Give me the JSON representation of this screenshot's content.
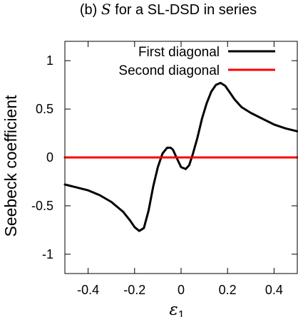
{
  "chart_data": {
    "type": "line",
    "title": "(b) S for a SL-DSD in series",
    "title_parts": {
      "prefix": "(b) ",
      "symbol": "S",
      "suffix": " for a SL-DSD in series"
    },
    "xlabel": "ε",
    "xlabel_sub": "1",
    "ylabel": "Seebeck coefficient",
    "xlim": [
      -0.5,
      0.5
    ],
    "ylim": [
      -1.2,
      1.2
    ],
    "xticks": [
      -0.4,
      -0.2,
      0,
      0.2,
      0.4
    ],
    "xtick_labels": [
      "-0.4",
      "-0.2",
      "0",
      "0.2",
      "0.4"
    ],
    "yticks": [
      -1,
      -0.5,
      0,
      0.5,
      1
    ],
    "ytick_labels": [
      "-1",
      "-0.5",
      "0",
      "0.5",
      "1"
    ],
    "grid": false,
    "legend_position": "top-right",
    "series": [
      {
        "name": "First diagonal",
        "color": "#000000",
        "x": [
          -0.5,
          -0.45,
          -0.4,
          -0.35,
          -0.3,
          -0.25,
          -0.22,
          -0.2,
          -0.18,
          -0.16,
          -0.14,
          -0.12,
          -0.1,
          -0.08,
          -0.06,
          -0.045,
          -0.035,
          -0.02,
          0.0,
          0.02,
          0.035,
          0.05,
          0.07,
          0.09,
          0.11,
          0.13,
          0.15,
          0.17,
          0.19,
          0.21,
          0.23,
          0.26,
          0.3,
          0.35,
          0.4,
          0.45,
          0.5
        ],
        "y": [
          -0.28,
          -0.31,
          -0.34,
          -0.39,
          -0.46,
          -0.56,
          -0.65,
          -0.72,
          -0.76,
          -0.73,
          -0.55,
          -0.3,
          -0.1,
          0.04,
          0.1,
          0.1,
          0.08,
          0.0,
          -0.1,
          -0.12,
          -0.08,
          0.03,
          0.2,
          0.4,
          0.56,
          0.68,
          0.75,
          0.77,
          0.74,
          0.67,
          0.6,
          0.52,
          0.46,
          0.4,
          0.34,
          0.3,
          0.27
        ]
      },
      {
        "name": "Second diagonal",
        "color": "#ff0000",
        "x": [
          -0.5,
          0.5
        ],
        "y": [
          0,
          0
        ]
      }
    ]
  }
}
